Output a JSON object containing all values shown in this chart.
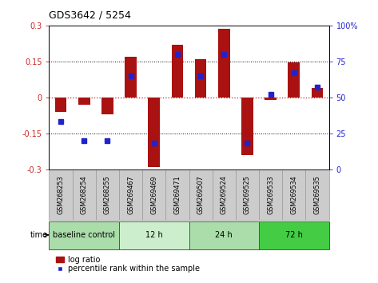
{
  "title": "GDS3642 / 5254",
  "samples": [
    "GSM268253",
    "GSM268254",
    "GSM268255",
    "GSM269467",
    "GSM269469",
    "GSM269471",
    "GSM269507",
    "GSM269524",
    "GSM269525",
    "GSM269533",
    "GSM269534",
    "GSM269535"
  ],
  "log_ratio": [
    -0.06,
    -0.03,
    -0.07,
    0.17,
    -0.29,
    0.22,
    0.16,
    0.285,
    -0.24,
    -0.01,
    0.145,
    0.04
  ],
  "percentile_rank": [
    33,
    20,
    20,
    65,
    18,
    80,
    65,
    80,
    18,
    52,
    67,
    57
  ],
  "groups": [
    {
      "label": "baseline control",
      "start": 0,
      "end": 3,
      "color": "#aaddaa"
    },
    {
      "label": "12 h",
      "start": 3,
      "end": 6,
      "color": "#cceecc"
    },
    {
      "label": "24 h",
      "start": 6,
      "end": 9,
      "color": "#aaddaa"
    },
    {
      "label": "72 h",
      "start": 9,
      "end": 12,
      "color": "#44cc44"
    }
  ],
  "ylim": [
    -0.3,
    0.3
  ],
  "yticks_left": [
    -0.3,
    -0.15,
    0,
    0.15,
    0.3
  ],
  "yticks_right": [
    0,
    25,
    50,
    75,
    100
  ],
  "bar_color": "#aa1111",
  "dot_color": "#2222cc",
  "bar_width": 0.5,
  "cell_color": "#cccccc",
  "cell_edge_color": "#999999",
  "left_tick_color": "#cc2222",
  "right_tick_color": "#2222cc",
  "zero_line_color": "#cc2222",
  "ref_line_color": "black"
}
